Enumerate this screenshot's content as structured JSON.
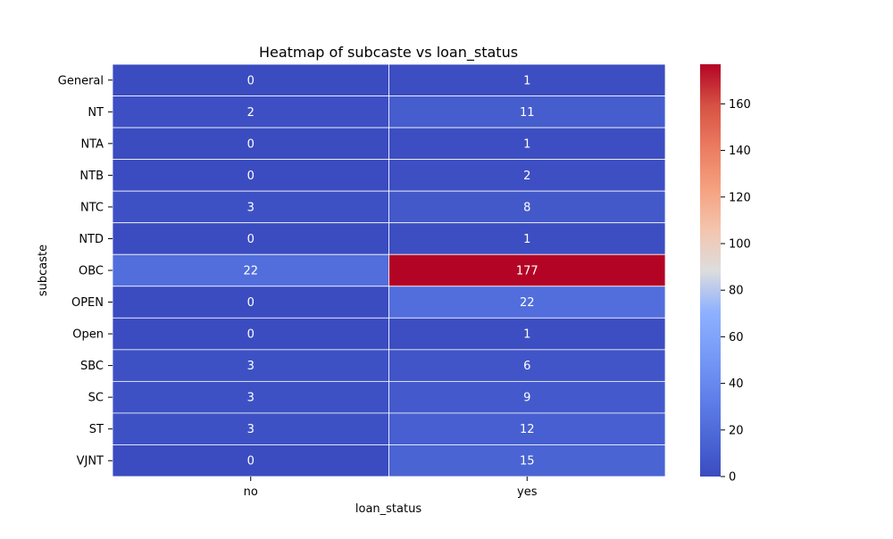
{
  "chart_data": {
    "type": "heatmap",
    "title": "Heatmap of subcaste vs loan_status",
    "xlabel": "loan_status",
    "ylabel": "subcaste",
    "x_categories": [
      "no",
      "yes"
    ],
    "y_categories": [
      "General",
      "NT",
      "NTA",
      "NTB",
      "NTC",
      "NTD",
      "OBC",
      "OPEN",
      "Open",
      "SBC",
      "SC",
      "ST",
      "VJNT"
    ],
    "values": [
      [
        0,
        1
      ],
      [
        2,
        11
      ],
      [
        0,
        1
      ],
      [
        0,
        2
      ],
      [
        3,
        8
      ],
      [
        0,
        1
      ],
      [
        22,
        177
      ],
      [
        0,
        22
      ],
      [
        0,
        1
      ],
      [
        3,
        6
      ],
      [
        3,
        9
      ],
      [
        3,
        12
      ],
      [
        0,
        15
      ]
    ],
    "colormap": "coolwarm",
    "colorbar": {
      "range": [
        0,
        177
      ],
      "ticks": [
        0,
        20,
        40,
        60,
        80,
        100,
        120,
        140,
        160
      ]
    },
    "annotations": true
  }
}
